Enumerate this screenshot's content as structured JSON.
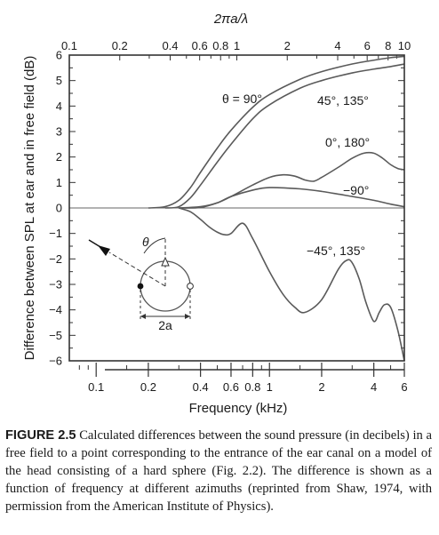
{
  "chart_data": {
    "type": "line",
    "title": "",
    "top_axis_title": "2πa/λ",
    "top_ticks": [
      "0.1",
      "0.2",
      "0.4",
      "0.6",
      "0.8",
      "1",
      "2",
      "4",
      "6",
      "8",
      "10"
    ],
    "xlabel": "Frequency (kHz)",
    "x_ticks": [
      "0.1",
      "0.2",
      "0.4",
      "0.6",
      "0.8",
      "1",
      "2",
      "4",
      "6"
    ],
    "x_scale": "log",
    "ylabel": "Difference between SPL at ear and in free field (dB)",
    "y_ticks": [
      "6",
      "5",
      "4",
      "3",
      "2",
      "1",
      "0",
      "−1",
      "−2",
      "−3",
      "−4",
      "−5",
      "−6"
    ],
    "ylim": [
      -6,
      6
    ],
    "grid": false,
    "series": [
      {
        "name": "θ = 90°",
        "x": [
          0.2,
          0.25,
          0.3,
          0.35,
          0.4,
          0.5,
          0.6,
          0.8,
          1.0,
          1.5,
          2.0,
          3.0,
          4.0,
          5.0,
          6.0
        ],
        "y": [
          0.0,
          0.05,
          0.3,
          0.8,
          1.4,
          2.35,
          3.05,
          3.95,
          4.45,
          5.05,
          5.35,
          5.65,
          5.8,
          5.9,
          5.95
        ]
      },
      {
        "name": "45°, 135°",
        "x": [
          0.25,
          0.3,
          0.35,
          0.4,
          0.5,
          0.6,
          0.8,
          1.0,
          1.5,
          2.0,
          3.0,
          4.0,
          5.0,
          6.0
        ],
        "y": [
          0.0,
          0.05,
          0.4,
          0.9,
          1.8,
          2.5,
          3.5,
          4.05,
          4.7,
          5.0,
          5.3,
          5.45,
          5.55,
          5.65
        ]
      },
      {
        "name": "0°, 180°",
        "x": [
          0.3,
          0.4,
          0.5,
          0.6,
          0.8,
          1.0,
          1.2,
          1.4,
          1.6,
          1.8,
          2.0,
          2.5,
          3.0,
          3.5,
          4.0,
          4.5,
          5.0,
          5.5,
          6.0
        ],
        "y": [
          0.0,
          0.05,
          0.2,
          0.45,
          0.9,
          1.2,
          1.3,
          1.25,
          1.1,
          1.05,
          1.2,
          1.6,
          1.95,
          2.15,
          2.15,
          1.95,
          1.7,
          1.55,
          1.5
        ]
      },
      {
        "name": "−90°",
        "x": [
          0.3,
          0.4,
          0.5,
          0.6,
          0.8,
          1.0,
          1.5,
          2.0,
          3.0,
          4.0,
          5.0,
          6.0
        ],
        "y": [
          0.0,
          0.02,
          0.2,
          0.45,
          0.7,
          0.8,
          0.75,
          0.65,
          0.45,
          0.3,
          0.15,
          0.05
        ]
      },
      {
        "name": "−45°, 135°",
        "x": [
          0.3,
          0.35,
          0.4,
          0.45,
          0.5,
          0.55,
          0.6,
          0.7,
          0.8,
          1.0,
          1.2,
          1.4,
          1.6,
          2.0,
          2.5,
          2.8,
          3.0,
          3.3,
          3.6,
          4.0,
          4.3,
          4.6,
          5.0,
          5.5,
          6.0
        ],
        "y": [
          0.0,
          -0.15,
          -0.45,
          -0.75,
          -0.95,
          -1.05,
          -1.0,
          -0.6,
          -1.2,
          -2.5,
          -3.4,
          -3.9,
          -4.1,
          -3.6,
          -2.4,
          -2.05,
          -2.15,
          -2.8,
          -3.7,
          -4.45,
          -4.1,
          -3.8,
          -3.9,
          -4.8,
          -6.0
        ]
      }
    ],
    "annotations": [
      "θ = 90°",
      "45°, 135°",
      "0°, 180°",
      "−90°",
      "−45°, 135°"
    ],
    "inset": {
      "angle_label": "θ",
      "diameter_label": "2a"
    }
  },
  "caption": {
    "label": "FIGURE 2.5",
    "text": "Calculated differences between the sound pressure (in decibels) in a free field to a point corresponding to the entrance of the ear canal on a model of the head consisting of a hard sphere (Fig. 2.2). The difference is shown as a function of frequency at different azimuths (reprinted from Shaw, 1974, with permission from the American Institute of Physics)."
  }
}
